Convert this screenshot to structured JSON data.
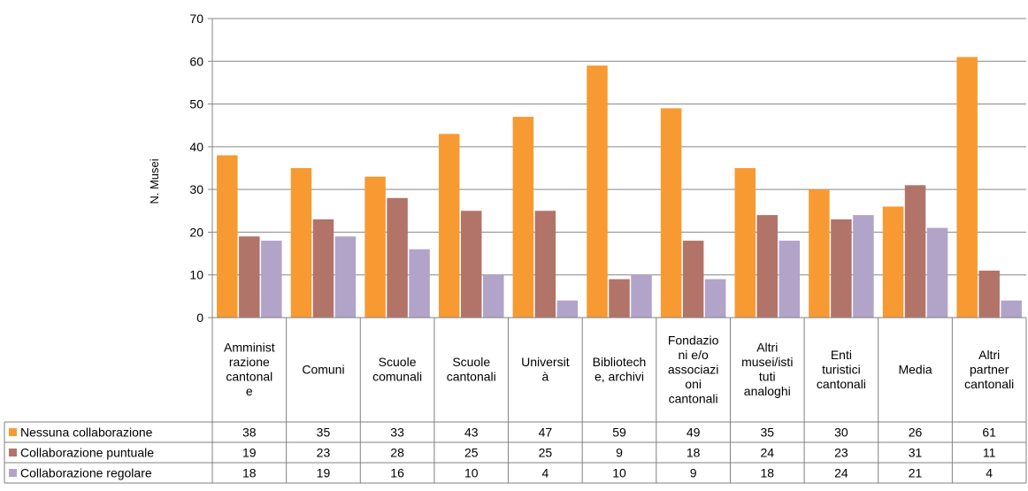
{
  "chart_data": {
    "type": "bar",
    "ylabel": "N. Musei",
    "ylim": [
      0,
      70
    ],
    "yticks": [
      0,
      10,
      20,
      30,
      40,
      50,
      60,
      70
    ],
    "grid": true,
    "legend": "table-left",
    "categories": [
      "Amministrazione cantonale",
      "Comuni",
      "Scuole comunali",
      "Scuole cantonali",
      "Università",
      "Biblioteche, archivi",
      "Fondazioni e/o associazioni cantonali",
      "Altri musei/istituti analoghi",
      "Enti turistici cantonali",
      "Media",
      "Altri partner cantonali"
    ],
    "category_label_lines": [
      [
        "Amminist",
        "razione",
        "cantonal",
        "e"
      ],
      [
        "Comuni"
      ],
      [
        "Scuole",
        "comunali"
      ],
      [
        "Scuole",
        "cantonali"
      ],
      [
        "Universit",
        "à"
      ],
      [
        "Bibliotech",
        "e, archivi"
      ],
      [
        "Fondazio",
        "ni e/o",
        "associazi",
        "oni",
        "cantonali"
      ],
      [
        "Altri",
        "musei/isti",
        "tuti",
        "analoghi"
      ],
      [
        "Enti",
        "turistici",
        "cantonali"
      ],
      [
        "Media"
      ],
      [
        "Altri",
        "partner",
        "cantonali"
      ]
    ],
    "series": [
      {
        "name": "Nessuna collaborazione",
        "color": "#f79a32",
        "values": [
          38,
          35,
          33,
          43,
          47,
          59,
          49,
          35,
          30,
          26,
          61
        ]
      },
      {
        "name": "Collaborazione puntuale",
        "color": "#b27468",
        "values": [
          19,
          23,
          28,
          25,
          25,
          9,
          18,
          24,
          23,
          31,
          11
        ]
      },
      {
        "name": "Collaborazione regolare",
        "color": "#b2a3c9",
        "values": [
          18,
          19,
          16,
          10,
          4,
          10,
          9,
          18,
          24,
          21,
          4
        ]
      }
    ]
  }
}
